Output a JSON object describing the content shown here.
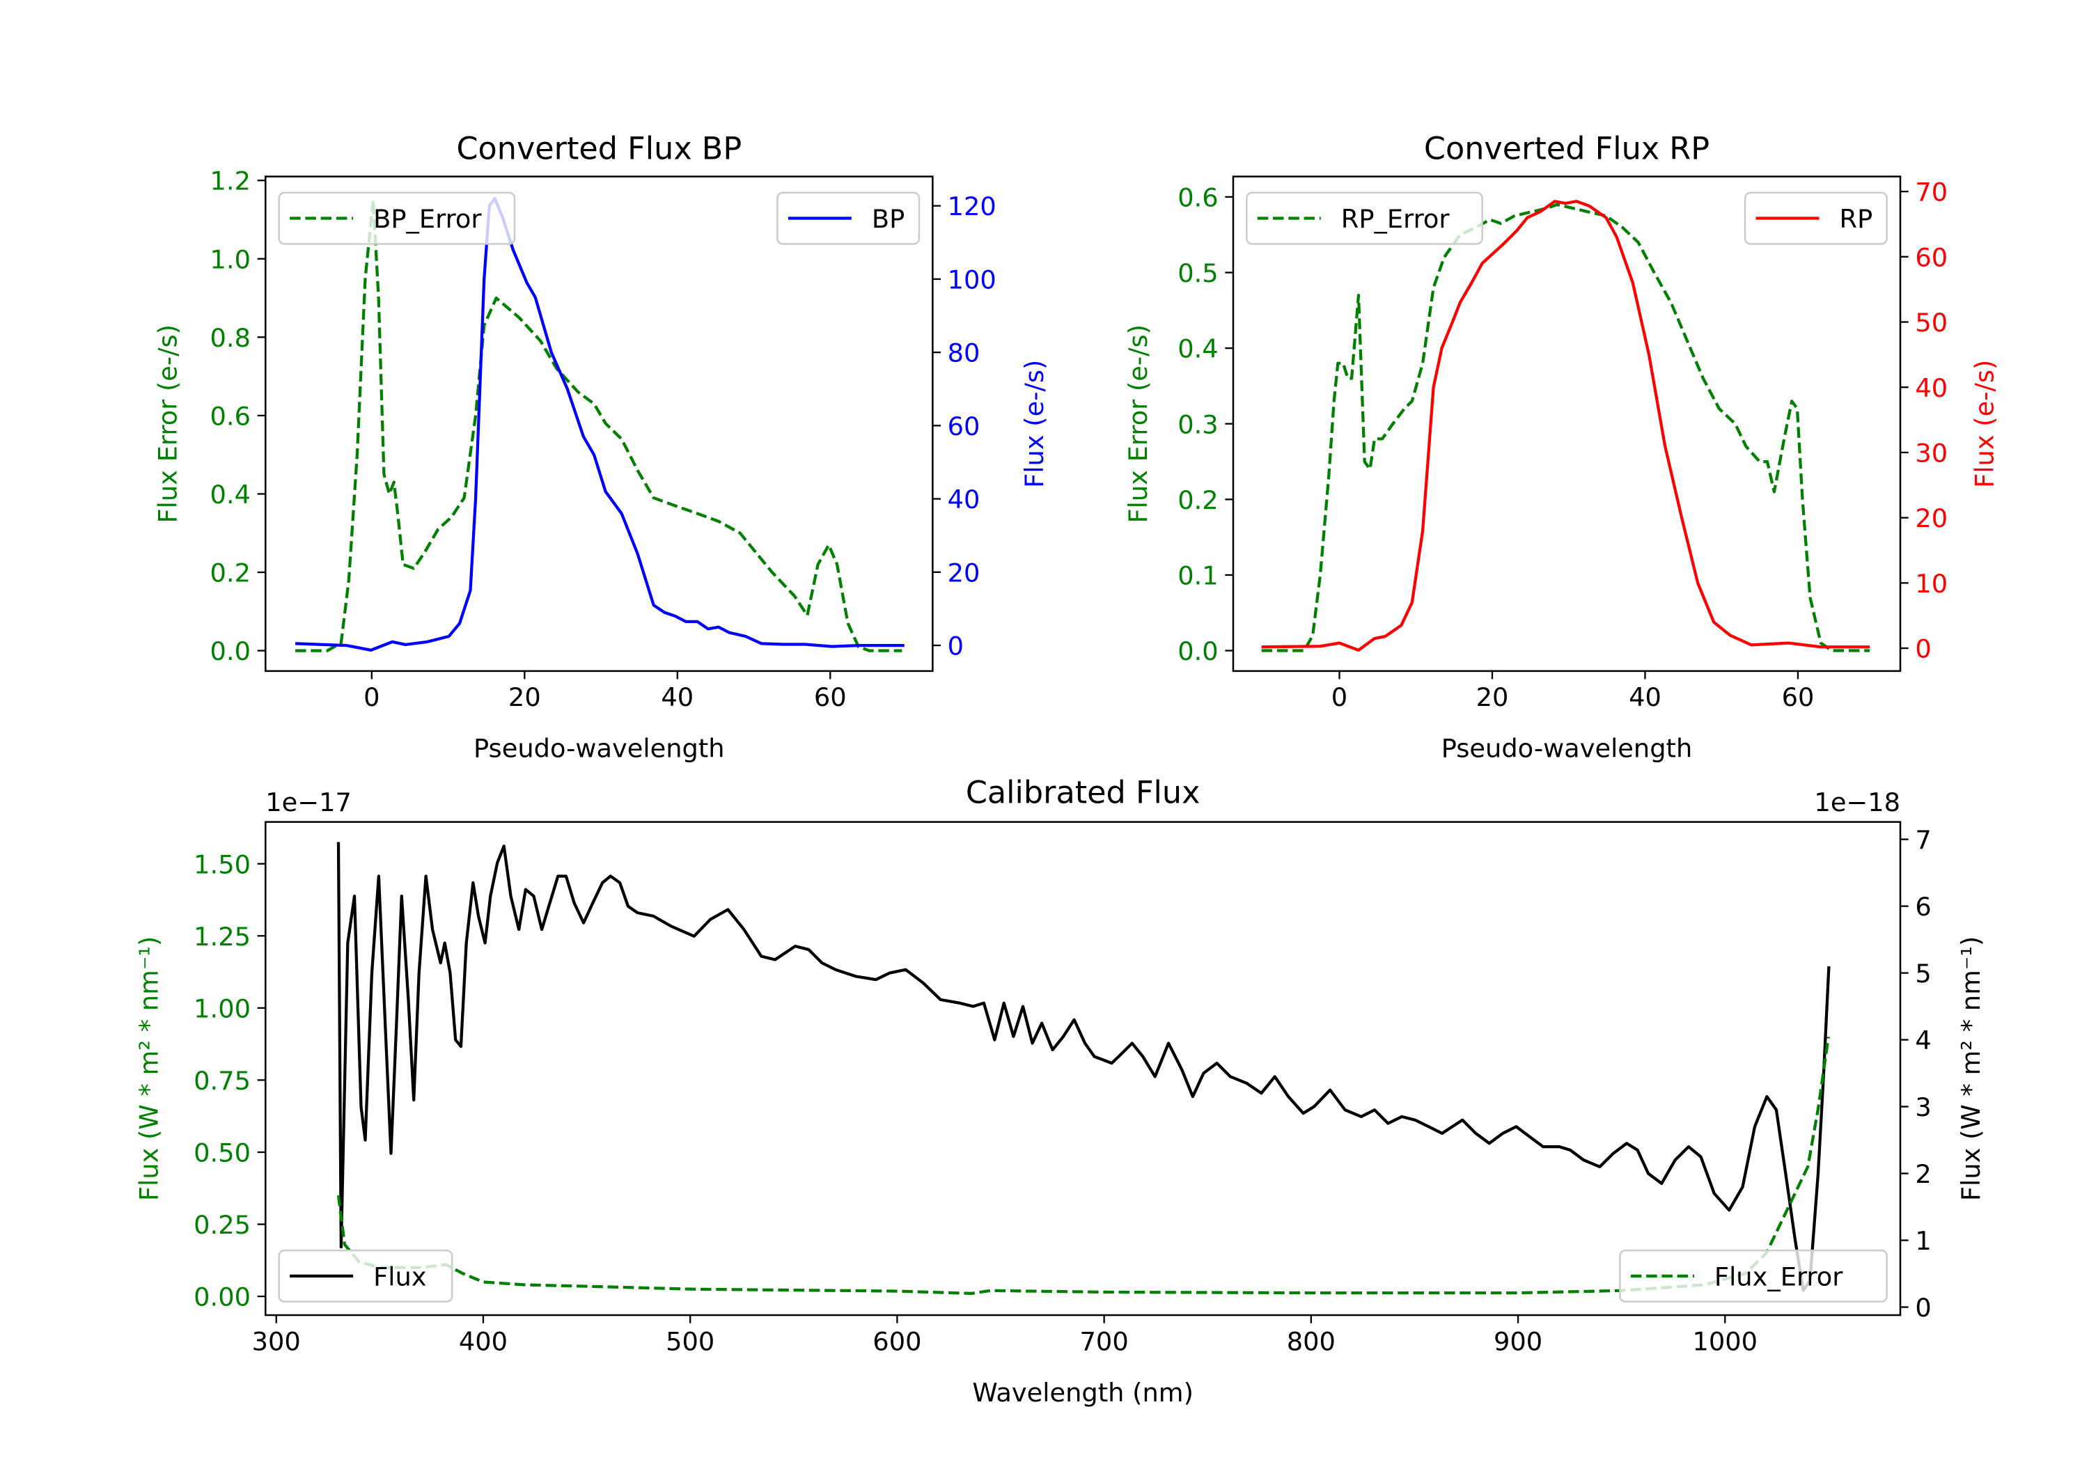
{
  "chart_data": [
    {
      "type": "line",
      "title": "Converted Flux BP",
      "xlabel": "Pseudo-wavelength",
      "ylabel_left": "Flux Error (e-/s)",
      "ylabel_right": "Flux (e-/s)",
      "color_left": "#008000",
      "color_right": "#0000ff",
      "xlim": [
        -13.9,
        73.4
      ],
      "ylim_left": [
        -0.052,
        1.21
      ],
      "ylim_right": [
        -7,
        128
      ],
      "xticks": [
        {
          "v": 0,
          "label": "0"
        },
        {
          "v": 20,
          "label": "20"
        },
        {
          "v": 40,
          "label": "40"
        },
        {
          "v": 60,
          "label": "60"
        }
      ],
      "yticks_left": [
        {
          "v": 0,
          "label": "0.0"
        },
        {
          "v": 0.2,
          "label": "0.2"
        },
        {
          "v": 0.4,
          "label": "0.4"
        },
        {
          "v": 0.6,
          "label": "0.6"
        },
        {
          "v": 0.8,
          "label": "0.8"
        },
        {
          "v": 1.0,
          "label": "1.0"
        },
        {
          "v": 1.2,
          "label": "1.2"
        }
      ],
      "yticks_right": [
        {
          "v": 0,
          "label": "0"
        },
        {
          "v": 20,
          "label": "20"
        },
        {
          "v": 40,
          "label": "40"
        },
        {
          "v": 60,
          "label": "60"
        },
        {
          "v": 80,
          "label": "80"
        },
        {
          "v": 100,
          "label": "100"
        },
        {
          "v": 120,
          "label": "120"
        }
      ],
      "series": [
        {
          "name": "BP_Error",
          "axis": "left",
          "color": "#008000",
          "style": "dashed",
          "legend": "upper left",
          "x": [
            -10,
            -5.8,
            -4,
            -3,
            -1.9,
            -0.85,
            0.2,
            0.9,
            1.6,
            2.3,
            2.9,
            3.4,
            4.1,
            5.5,
            6.9,
            8.7,
            10.4,
            12.1,
            13.6,
            14.7,
            16.3,
            19.3,
            22.1,
            24.2,
            27,
            29.1,
            30.6,
            32.7,
            34.8,
            36.9,
            39.7,
            42.6,
            45.4,
            48.2,
            50.3,
            52.4,
            55.3,
            57,
            58.4,
            59.8,
            60.9,
            62.3,
            63.7,
            65.1,
            69.4
          ],
          "y": [
            0,
            0,
            0.02,
            0.18,
            0.5,
            0.95,
            1.15,
            0.9,
            0.45,
            0.4,
            0.43,
            0.35,
            0.22,
            0.21,
            0.25,
            0.31,
            0.34,
            0.39,
            0.6,
            0.83,
            0.9,
            0.85,
            0.79,
            0.72,
            0.66,
            0.63,
            0.58,
            0.54,
            0.46,
            0.39,
            0.37,
            0.35,
            0.33,
            0.3,
            0.25,
            0.2,
            0.14,
            0.09,
            0.22,
            0.27,
            0.22,
            0.07,
            0.01,
            0,
            0
          ]
        },
        {
          "name": "BP",
          "axis": "right",
          "color": "#0000ff",
          "style": "solid",
          "legend": "upper right",
          "x": [
            -10,
            -3.3,
            -0.1,
            2.7,
            4.4,
            7.3,
            10.1,
            11.5,
            12.9,
            13.6,
            14.7,
            15.4,
            16.1,
            17.1,
            18.5,
            20.3,
            21.4,
            23.5,
            25.6,
            27.7,
            29.1,
            30.6,
            32.7,
            34.8,
            36.9,
            38.3,
            39.7,
            41.1,
            42.6,
            44,
            45.4,
            46.8,
            48.9,
            51,
            53.8,
            56.7,
            60.2,
            63.7,
            69.7
          ],
          "y": [
            0.5,
            0,
            -1.3,
            1,
            0.2,
            1,
            2.5,
            6,
            15,
            40,
            100,
            120,
            122,
            117,
            108,
            99,
            95,
            80,
            70,
            57,
            52,
            42,
            36,
            25,
            11,
            9,
            8,
            6.5,
            6.5,
            4.5,
            5,
            3.5,
            2.5,
            0.5,
            0.3,
            0.3,
            -0.3,
            0,
            0
          ]
        }
      ]
    },
    {
      "type": "line",
      "title": "Converted Flux RP",
      "xlabel": "Pseudo-wavelength",
      "ylabel_left": "Flux Error (e-/s)",
      "ylabel_right": "Flux (e-/s)",
      "color_left": "#008000",
      "color_right": "#ff0000",
      "xlim": [
        -13.9,
        73.4
      ],
      "ylim_left": [
        -0.027,
        0.627
      ],
      "ylim_right": [
        -3.5,
        72.3
      ],
      "xticks": [
        {
          "v": 0,
          "label": "0"
        },
        {
          "v": 20,
          "label": "20"
        },
        {
          "v": 40,
          "label": "40"
        },
        {
          "v": 60,
          "label": "60"
        }
      ],
      "yticks_left": [
        {
          "v": 0,
          "label": "0.0"
        },
        {
          "v": 0.1,
          "label": "0.1"
        },
        {
          "v": 0.2,
          "label": "0.2"
        },
        {
          "v": 0.3,
          "label": "0.3"
        },
        {
          "v": 0.4,
          "label": "0.4"
        },
        {
          "v": 0.5,
          "label": "0.5"
        },
        {
          "v": 0.6,
          "label": "0.6"
        }
      ],
      "yticks_right": [
        {
          "v": 0,
          "label": "0"
        },
        {
          "v": 10,
          "label": "10"
        },
        {
          "v": 20,
          "label": "20"
        },
        {
          "v": 30,
          "label": "30"
        },
        {
          "v": 40,
          "label": "40"
        },
        {
          "v": 50,
          "label": "50"
        },
        {
          "v": 60,
          "label": "60"
        },
        {
          "v": 70,
          "label": "70"
        }
      ],
      "series": [
        {
          "name": "RP_Error",
          "axis": "left",
          "color": "#008000",
          "style": "dashed",
          "legend": "upper left",
          "x": [
            -10.2,
            -4.6,
            -3.5,
            -2.5,
            -1.4,
            -0.7,
            -0.2,
            0.5,
            1.1,
            1.6,
            2.5,
            3.3,
            4,
            4.6,
            5.6,
            7,
            8.5,
            9.5,
            10.9,
            12.3,
            13.7,
            15.8,
            17.9,
            19.7,
            21.1,
            22.9,
            25,
            27.1,
            28.5,
            30.6,
            32.7,
            34.9,
            37,
            39.1,
            41.2,
            43.4,
            45.5,
            47.6,
            49.7,
            51.8,
            53.2,
            55,
            56,
            56.9,
            58.2,
            59.2,
            59.9,
            60.6,
            61.6,
            63,
            64.4,
            69.4
          ],
          "y": [
            0,
            0,
            0.02,
            0.1,
            0.23,
            0.33,
            0.38,
            0.38,
            0.36,
            0.36,
            0.47,
            0.25,
            0.24,
            0.28,
            0.28,
            0.3,
            0.32,
            0.33,
            0.38,
            0.48,
            0.52,
            0.55,
            0.56,
            0.57,
            0.565,
            0.575,
            0.58,
            0.585,
            0.59,
            0.585,
            0.58,
            0.575,
            0.56,
            0.54,
            0.5,
            0.46,
            0.41,
            0.36,
            0.32,
            0.3,
            0.27,
            0.25,
            0.25,
            0.21,
            0.28,
            0.33,
            0.32,
            0.2,
            0.07,
            0.01,
            0,
            0
          ]
        },
        {
          "name": "RP",
          "axis": "right",
          "color": "#ff0000",
          "style": "solid",
          "legend": "upper right",
          "x": [
            -10.2,
            -2.5,
            0,
            2.5,
            4.6,
            6,
            8.1,
            9.5,
            10.9,
            12.3,
            13.4,
            14.8,
            15.8,
            17.3,
            18.7,
            20.1,
            21.5,
            23.2,
            24.6,
            26.4,
            28.2,
            29.6,
            31,
            32.7,
            34.9,
            36.3,
            38.4,
            40.5,
            42.6,
            44.8,
            46.9,
            49,
            51.1,
            53.9,
            58.8,
            63,
            69.4
          ],
          "y": [
            0.2,
            0.3,
            0.8,
            -0.3,
            1.5,
            1.8,
            3.5,
            7,
            18,
            40,
            46,
            50,
            53,
            56,
            59,
            60.5,
            62,
            64,
            66,
            67,
            68.5,
            68.2,
            68.5,
            67.8,
            66,
            63,
            56,
            45,
            31,
            20,
            10,
            4,
            2,
            0.5,
            0.8,
            0.2,
            0.2
          ]
        }
      ]
    },
    {
      "type": "line",
      "title": "Calibrated Flux",
      "xlabel": "Wavelength (nm)",
      "ylabel_left": "Flux (W * m² * nm⁻¹)",
      "ylabel_right": "Flux (W * m² * nm⁻¹)",
      "offset_left": "1e−17",
      "offset_right": "1e−18",
      "color_left": "#008000",
      "color_right": "#000000",
      "xlim": [
        294.8,
        1084.7
      ],
      "ylim_left": [
        -0.065,
        1.645
      ],
      "ylim_right": [
        -0.12,
        7.26
      ],
      "xticks": [
        {
          "v": 300,
          "label": "300"
        },
        {
          "v": 400,
          "label": "400"
        },
        {
          "v": 500,
          "label": "500"
        },
        {
          "v": 600,
          "label": "600"
        },
        {
          "v": 700,
          "label": "700"
        },
        {
          "v": 800,
          "label": "800"
        },
        {
          "v": 900,
          "label": "900"
        },
        {
          "v": 1000,
          "label": "1000"
        }
      ],
      "yticks_left": [
        {
          "v": 0,
          "label": "0.00"
        },
        {
          "v": 0.25,
          "label": "0.25"
        },
        {
          "v": 0.5,
          "label": "0.50"
        },
        {
          "v": 0.75,
          "label": "0.75"
        },
        {
          "v": 1.0,
          "label": "1.00"
        },
        {
          "v": 1.25,
          "label": "1.25"
        },
        {
          "v": 1.5,
          "label": "1.50"
        }
      ],
      "yticks_right": [
        {
          "v": 0,
          "label": "0"
        },
        {
          "v": 1,
          "label": "1"
        },
        {
          "v": 2,
          "label": "2"
        },
        {
          "v": 3,
          "label": "3"
        },
        {
          "v": 4,
          "label": "4"
        },
        {
          "v": 5,
          "label": "5"
        },
        {
          "v": 6,
          "label": "6"
        },
        {
          "v": 7,
          "label": "7"
        }
      ],
      "series": [
        {
          "name": "Flux",
          "axis": "right",
          "color": "#000000",
          "style": "solid",
          "legend": "lower left",
          "x": [
            330,
            331.3,
            334.5,
            337.8,
            341,
            343,
            346.2,
            349.5,
            352.7,
            355.4,
            358,
            360.6,
            363.8,
            366.4,
            369,
            372.3,
            375.5,
            379.4,
            381.4,
            384,
            386.6,
            389.2,
            391.8,
            395.1,
            397.7,
            400.9,
            403.5,
            406.8,
            410,
            413.3,
            417.2,
            420.5,
            424.4,
            428.3,
            432.2,
            436.1,
            440,
            443.9,
            448.5,
            453,
            457.6,
            461.5,
            466,
            470,
            474.5,
            482.3,
            490.8,
            501.9,
            509.7,
            518.2,
            526,
            534.4,
            541,
            550.7,
            557.2,
            563.7,
            570.2,
            580,
            589.8,
            596.3,
            604.1,
            612.6,
            621,
            630.2,
            636.7,
            641.9,
            647.1,
            651.6,
            656.2,
            660.8,
            665.3,
            669.9,
            675.1,
            680.3,
            685.5,
            690.7,
            695.3,
            703.7,
            707,
            713.5,
            718.7,
            724.6,
            731.1,
            737.6,
            742.8,
            748,
            754.5,
            761,
            768.9,
            776,
            782.5,
            789,
            796.2,
            801.4,
            809.2,
            816.4,
            824.2,
            830.7,
            837.2,
            843.8,
            850.3,
            856.8,
            863.3,
            873.1,
            879.6,
            886.1,
            892.6,
            899.1,
            905.6,
            912.1,
            919.9,
            925.2,
            931.7,
            939.5,
            946,
            952.5,
            957.7,
            962.9,
            969.4,
            975.9,
            982.4,
            988.3,
            994.8,
            1002,
            1008.5,
            1014.4,
            1020.2,
            1024.8,
            1029.3,
            1033.9,
            1037.8,
            1041.1,
            1045,
            1047.6,
            1050.2
          ],
          "y": [
            6.96,
            0.9,
            5.45,
            6.15,
            3.0,
            2.5,
            5.0,
            6.45,
            4.2,
            2.3,
            4.2,
            6.15,
            4.6,
            3.1,
            5.0,
            6.45,
            5.65,
            5.15,
            5.45,
            5.0,
            4.0,
            3.9,
            5.45,
            6.35,
            5.85,
            5.45,
            6.15,
            6.65,
            6.9,
            6.15,
            5.65,
            6.25,
            6.15,
            5.65,
            6.05,
            6.45,
            6.45,
            6.05,
            5.75,
            6.05,
            6.35,
            6.45,
            6.35,
            6.0,
            5.9,
            5.85,
            5.7,
            5.55,
            5.8,
            5.95,
            5.65,
            5.25,
            5.2,
            5.4,
            5.35,
            5.15,
            5.05,
            4.95,
            4.9,
            5.0,
            5.05,
            4.85,
            4.6,
            4.55,
            4.5,
            4.55,
            4.0,
            4.55,
            4.05,
            4.5,
            3.95,
            4.25,
            3.85,
            4.05,
            4.3,
            3.95,
            3.75,
            3.65,
            3.75,
            3.95,
            3.75,
            3.45,
            3.95,
            3.55,
            3.15,
            3.5,
            3.65,
            3.45,
            3.35,
            3.2,
            3.45,
            3.15,
            2.9,
            3.0,
            3.25,
            2.95,
            2.85,
            2.95,
            2.75,
            2.85,
            2.8,
            2.7,
            2.6,
            2.8,
            2.6,
            2.45,
            2.6,
            2.7,
            2.55,
            2.4,
            2.4,
            2.35,
            2.2,
            2.1,
            2.3,
            2.45,
            2.35,
            2.0,
            1.85,
            2.2,
            2.4,
            2.25,
            1.7,
            1.45,
            1.8,
            2.7,
            3.15,
            2.95,
            2.0,
            1.0,
            0.25,
            0.4,
            2.0,
            3.45,
            5.1
          ]
        },
        {
          "name": "Flux_Error",
          "axis": "left",
          "color": "#008000",
          "style": "dashed",
          "legend": "lower right",
          "x": [
            330,
            333,
            340,
            350,
            370,
            382,
            390,
            400,
            420,
            450,
            500,
            600,
            636,
            645,
            700,
            800,
            900,
            950,
            990,
            1010,
            1020,
            1030,
            1040,
            1045,
            1050
          ],
          "y": [
            0.35,
            0.18,
            0.12,
            0.1,
            0.1,
            0.11,
            0.08,
            0.05,
            0.04,
            0.035,
            0.025,
            0.018,
            0.01,
            0.02,
            0.015,
            0.012,
            0.012,
            0.02,
            0.04,
            0.08,
            0.15,
            0.3,
            0.45,
            0.65,
            0.9
          ]
        }
      ]
    }
  ]
}
